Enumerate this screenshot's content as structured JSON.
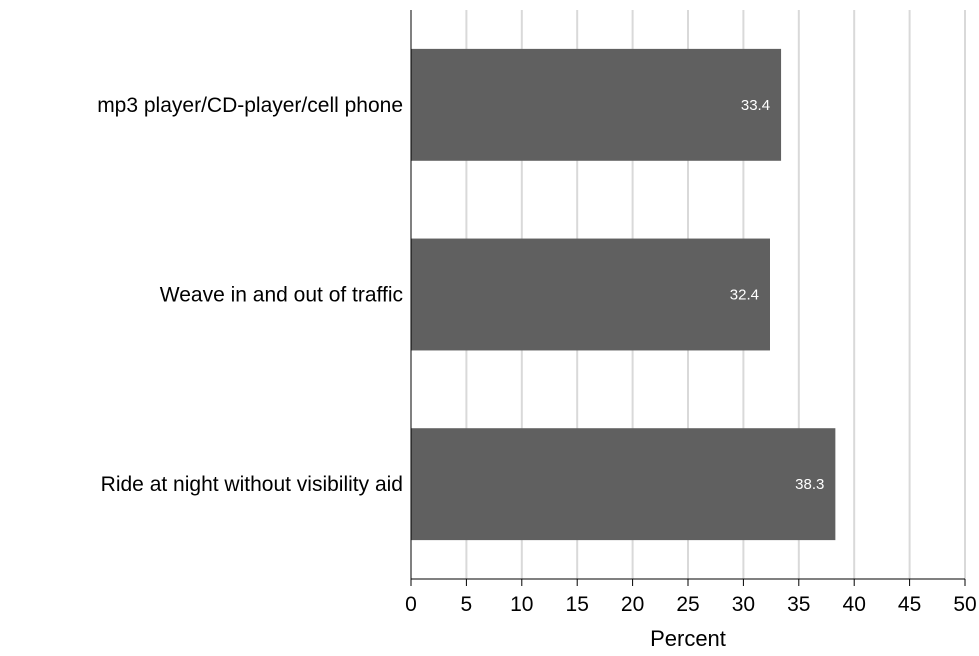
{
  "chart_data": {
    "type": "bar",
    "orientation": "horizontal",
    "categories": [
      "mp3 player/CD-player/cell phone",
      "Weave in and out of traffic",
      "Ride at night without visibility aid"
    ],
    "values": [
      33.4,
      32.4,
      38.3
    ],
    "value_labels": [
      "33.4",
      "32.4",
      "38.3"
    ],
    "xlabel": "Percent",
    "ylabel": "",
    "xlim": [
      0,
      50
    ],
    "x_ticks": [
      "0",
      "5",
      "10",
      "15",
      "20",
      "25",
      "30",
      "35",
      "40",
      "45",
      "50"
    ],
    "grid": "vertical",
    "bar_color": "#606060",
    "grid_color": "#d9d9d9"
  }
}
